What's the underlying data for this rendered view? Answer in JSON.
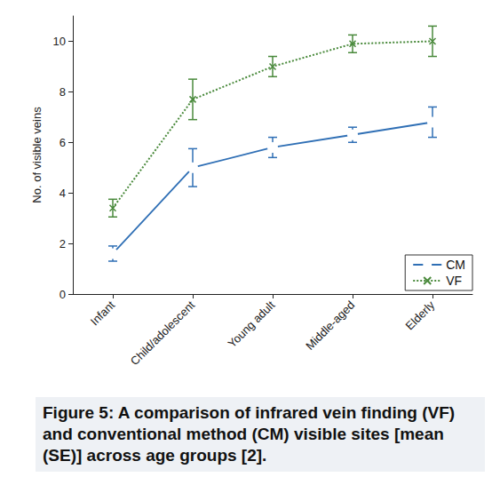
{
  "chart_data": {
    "type": "line",
    "title": "Figure 5: A comparison of infrared vein finding (VF) and conventional method (CM) visible sites [mean (SE)] across age groups [2].",
    "y_label": "No. of visible veins",
    "categories": [
      "Infant",
      "Child/adolescent",
      "Young adult",
      "Middle-aged",
      "Elderly"
    ],
    "series": [
      {
        "name": "CM",
        "color": "#2f6fb5",
        "marker": "o",
        "line_style": "solid",
        "values": [
          1.6,
          5.0,
          5.8,
          6.3,
          6.8
        ],
        "errors": [
          0.3,
          0.75,
          0.4,
          0.3,
          0.6
        ]
      },
      {
        "name": "VF",
        "color": "#4a8a3c",
        "marker": "x",
        "line_style": "dotted",
        "values": [
          3.4,
          7.7,
          9.0,
          9.9,
          10.0
        ],
        "errors": [
          0.35,
          0.8,
          0.4,
          0.35,
          0.6
        ]
      }
    ],
    "ylim": [
      0,
      11
    ],
    "yticks": [
      0,
      2,
      4,
      6,
      8,
      10
    ],
    "grid": false,
    "legend": "lower right"
  }
}
